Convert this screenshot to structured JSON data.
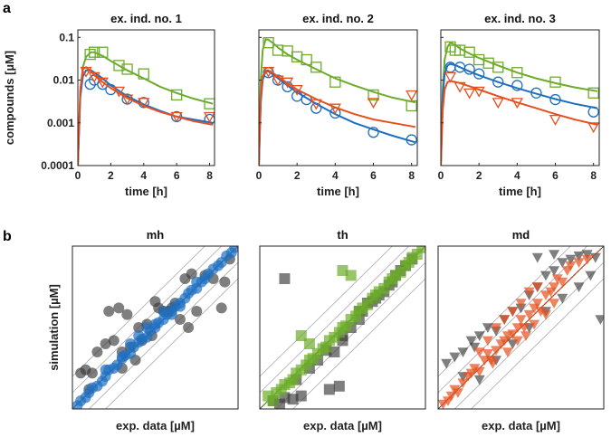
{
  "panel_labels": {
    "a": "a",
    "b": "b"
  },
  "colors": {
    "blue": "#1f6fc0",
    "orange": "#e6501e",
    "green": "#6cac2a",
    "gray": "#3a3a3a"
  },
  "chart_data": [
    {
      "id": "a1",
      "type": "line",
      "title": "ex. ind. no. 1",
      "xlabel": "time [h]",
      "ylabel": "compounds [µM]",
      "xlim": [
        0,
        8.3
      ],
      "ylim": [
        0.0001,
        0.15
      ],
      "yscale": "log",
      "xticks": [
        0,
        2,
        4,
        6,
        8
      ],
      "yticks": [
        0.0001,
        0.001,
        0.01,
        0.1
      ],
      "ytick_labels": [
        "0.0001",
        "0.001",
        "0.01",
        "0.1"
      ],
      "series": [
        {
          "name": "green",
          "color": "green",
          "curve_x": [
            0,
            0.15,
            0.3,
            0.5,
            0.8,
            1,
            1.5,
            2,
            3,
            4,
            5,
            6,
            7,
            8.2
          ],
          "curve_y": [
            0.0001,
            0.005,
            0.02,
            0.035,
            0.045,
            0.045,
            0.037,
            0.028,
            0.017,
            0.011,
            0.007,
            0.005,
            0.0037,
            0.0028
          ],
          "marker": "square",
          "points_x": [
            0.75,
            1.0,
            1.5,
            2.5,
            3.0,
            4.0,
            6.0,
            8.0
          ],
          "points_y": [
            0.04,
            0.045,
            0.045,
            0.022,
            0.018,
            0.014,
            0.0045,
            0.0028
          ]
        },
        {
          "name": "blue",
          "color": "blue",
          "curve_x": [
            0,
            0.15,
            0.3,
            0.5,
            0.8,
            1,
            1.5,
            2,
            3,
            4,
            5,
            6,
            7,
            8.2
          ],
          "curve_y": [
            0.0001,
            0.004,
            0.012,
            0.017,
            0.017,
            0.015,
            0.011,
            0.0075,
            0.0042,
            0.0027,
            0.0019,
            0.0014,
            0.0012,
            0.001
          ],
          "marker": "circle",
          "points_x": [
            0.75,
            1.0,
            1.5,
            2.0,
            3.0,
            4.0,
            6.0,
            8.0
          ],
          "points_y": [
            0.008,
            0.01,
            0.008,
            0.006,
            0.0036,
            0.003,
            0.0014,
            0.0012
          ]
        },
        {
          "name": "orange",
          "color": "orange",
          "curve_x": [
            0,
            0.15,
            0.3,
            0.5,
            0.8,
            1,
            1.5,
            2,
            3,
            4,
            5,
            6,
            7,
            8.2
          ],
          "curve_y": [
            0.0001,
            0.006,
            0.018,
            0.02,
            0.016,
            0.013,
            0.009,
            0.0065,
            0.0038,
            0.0025,
            0.0018,
            0.0014,
            0.0011,
            0.0009
          ],
          "marker": "triangle-down",
          "points_x": [
            0.5,
            1.0,
            1.5,
            2.5,
            3.0,
            4.0,
            6.0,
            8.0
          ],
          "points_y": [
            0.016,
            0.012,
            0.009,
            0.0055,
            0.0036,
            0.003,
            0.0014,
            0.0014
          ]
        }
      ]
    },
    {
      "id": "a2",
      "type": "line",
      "title": "ex. ind. no. 2",
      "xlabel": "time [h]",
      "ylabel": "",
      "xlim": [
        0,
        8.3
      ],
      "ylim": [
        0.0001,
        0.15
      ],
      "yscale": "log",
      "xticks": [
        0,
        2,
        4,
        6,
        8
      ],
      "yticks": [
        0.0001,
        0.001,
        0.01,
        0.1
      ],
      "series": [
        {
          "name": "green",
          "color": "green",
          "curve_x": [
            0,
            0.1,
            0.2,
            0.35,
            0.5,
            0.8,
            1,
            1.5,
            2,
            3,
            4,
            5,
            6,
            7,
            8.2
          ],
          "curve_y": [
            0.0001,
            0.01,
            0.05,
            0.09,
            0.088,
            0.07,
            0.058,
            0.04,
            0.03,
            0.018,
            0.011,
            0.0075,
            0.0053,
            0.0039,
            0.003
          ],
          "marker": "square",
          "points_x": [
            0.5,
            1.0,
            1.5,
            2.0,
            2.5,
            3.0,
            4.0,
            6.0,
            8.0
          ],
          "points_y": [
            0.075,
            0.05,
            0.048,
            0.035,
            0.03,
            0.02,
            0.009,
            0.0045,
            0.0025
          ]
        },
        {
          "name": "blue",
          "color": "blue",
          "curve_x": [
            0,
            0.1,
            0.2,
            0.35,
            0.5,
            0.8,
            1,
            1.5,
            2,
            3,
            4,
            5,
            6,
            7,
            8.2
          ],
          "curve_y": [
            0.0001,
            0.003,
            0.01,
            0.016,
            0.016,
            0.013,
            0.011,
            0.0075,
            0.0052,
            0.0028,
            0.0016,
            0.001,
            0.0007,
            0.0005,
            0.00035
          ],
          "marker": "circle",
          "points_x": [
            0.5,
            1.0,
            1.5,
            2.0,
            2.5,
            3.0,
            4.0,
            6.0,
            8.0
          ],
          "points_y": [
            0.015,
            0.01,
            0.007,
            0.0042,
            0.0035,
            0.0022,
            0.0017,
            0.0006,
            0.0004
          ]
        },
        {
          "name": "orange",
          "color": "orange",
          "curve_x": [
            0,
            0.1,
            0.2,
            0.35,
            0.5,
            0.8,
            1,
            1.5,
            2,
            3,
            4,
            5,
            6,
            7,
            8.2
          ],
          "curve_y": [
            0.0001,
            0.004,
            0.012,
            0.017,
            0.017,
            0.014,
            0.012,
            0.0085,
            0.006,
            0.0036,
            0.0023,
            0.0016,
            0.0012,
            0.001,
            0.0008
          ],
          "marker": "triangle-down",
          "points_x": [
            0.5,
            1.0,
            1.5,
            2.0,
            3.0,
            4.0,
            6.0,
            8.0
          ],
          "points_y": [
            0.016,
            0.01,
            0.009,
            0.006,
            0.0028,
            0.0022,
            0.003,
            0.0045
          ]
        }
      ]
    },
    {
      "id": "a3",
      "type": "line",
      "title": "ex. ind. no. 3",
      "xlabel": "time [h]",
      "ylabel": "",
      "xlim": [
        0,
        8.3
      ],
      "ylim": [
        0.0001,
        0.15
      ],
      "yscale": "log",
      "xticks": [
        0,
        2,
        4,
        6,
        8
      ],
      "yticks": [
        0.0001,
        0.001,
        0.01,
        0.1
      ],
      "series": [
        {
          "name": "green",
          "color": "green",
          "curve_x": [
            0,
            0.1,
            0.2,
            0.35,
            0.5,
            0.8,
            1,
            1.5,
            2,
            3,
            4,
            5,
            6,
            7,
            8.2
          ],
          "curve_y": [
            0.0001,
            0.006,
            0.03,
            0.06,
            0.075,
            0.065,
            0.055,
            0.042,
            0.033,
            0.022,
            0.015,
            0.011,
            0.0085,
            0.0068,
            0.0055
          ],
          "marker": "square",
          "points_x": [
            0.5,
            0.75,
            1.0,
            1.5,
            2.0,
            2.5,
            3.0,
            4.0,
            6.0,
            8.0
          ],
          "points_y": [
            0.06,
            0.05,
            0.05,
            0.045,
            0.03,
            0.025,
            0.02,
            0.015,
            0.009,
            0.005
          ]
        },
        {
          "name": "blue",
          "color": "blue",
          "curve_x": [
            0,
            0.1,
            0.2,
            0.35,
            0.5,
            0.8,
            1,
            1.5,
            2,
            3,
            4,
            5,
            6,
            7,
            8.2
          ],
          "curve_y": [
            0.0001,
            0.004,
            0.014,
            0.022,
            0.024,
            0.022,
            0.02,
            0.016,
            0.013,
            0.009,
            0.0065,
            0.0048,
            0.0036,
            0.0028,
            0.0022
          ],
          "marker": "circle",
          "points_x": [
            0.5,
            1.0,
            1.5,
            2.0,
            3.0,
            4.0,
            5.0,
            6.0,
            8.0
          ],
          "points_y": [
            0.02,
            0.02,
            0.018,
            0.014,
            0.009,
            0.0075,
            0.005,
            0.0035,
            0.0018
          ]
        },
        {
          "name": "orange",
          "color": "orange",
          "curve_x": [
            0,
            0.1,
            0.2,
            0.35,
            0.5,
            0.8,
            1,
            1.5,
            2,
            3,
            4,
            5,
            6,
            7,
            8.2
          ],
          "curve_y": [
            0.0001,
            0.002,
            0.006,
            0.009,
            0.0095,
            0.009,
            0.0085,
            0.0072,
            0.006,
            0.0042,
            0.003,
            0.0022,
            0.0016,
            0.0012,
            0.0009
          ],
          "marker": "triangle-down",
          "points_x": [
            0.5,
            1.0,
            1.5,
            2.0,
            3.0,
            4.0,
            6.0,
            8.0
          ],
          "points_y": [
            0.012,
            0.007,
            0.005,
            0.0055,
            0.003,
            0.003,
            0.0012,
            0.0008
          ]
        }
      ]
    },
    {
      "id": "b1",
      "type": "scatter",
      "title": "mh",
      "xlabel": "exp. data [µM]",
      "ylabel": "simulation [µM]",
      "xlim": [
        0,
        1
      ],
      "ylim": [
        0,
        1
      ],
      "diagonal_bands": [
        -0.2,
        -0.1,
        0,
        0.1,
        0.2
      ],
      "marker": "circle",
      "color": "blue",
      "fit_color": "blue",
      "points_x": [
        0.03,
        0.05,
        0.08,
        0.1,
        0.12,
        0.15,
        0.18,
        0.2,
        0.22,
        0.25,
        0.27,
        0.3,
        0.32,
        0.35,
        0.37,
        0.4,
        0.42,
        0.45,
        0.47,
        0.5,
        0.52,
        0.55,
        0.57,
        0.6,
        0.62,
        0.65,
        0.68,
        0.7,
        0.72,
        0.75,
        0.78,
        0.8,
        0.82,
        0.85,
        0.88,
        0.9,
        0.93,
        0.96,
        0.98,
        0.2,
        0.3,
        0.4,
        0.5,
        0.6,
        0.35,
        0.45,
        0.55,
        0.65,
        0.75
      ],
      "points_y": [
        0.02,
        0.05,
        0.07,
        0.1,
        0.13,
        0.14,
        0.17,
        0.2,
        0.24,
        0.25,
        0.27,
        0.31,
        0.33,
        0.34,
        0.38,
        0.41,
        0.43,
        0.44,
        0.48,
        0.5,
        0.53,
        0.55,
        0.58,
        0.6,
        0.63,
        0.65,
        0.68,
        0.71,
        0.73,
        0.74,
        0.78,
        0.8,
        0.83,
        0.86,
        0.88,
        0.9,
        0.94,
        0.96,
        0.99,
        0.24,
        0.32,
        0.45,
        0.52,
        0.58,
        0.4,
        0.5,
        0.6,
        0.63,
        0.78
      ],
      "points2_x": [
        0.05,
        0.08,
        0.12,
        0.1,
        0.15,
        0.2,
        0.25,
        0.3,
        0.35,
        0.4,
        0.22,
        0.28,
        0.33,
        0.45,
        0.5,
        0.55,
        0.6,
        0.65,
        0.7,
        0.3,
        0.38,
        0.42,
        0.48,
        0.52,
        0.58,
        0.62,
        0.68,
        0.72,
        0.8,
        0.85,
        0.92,
        0.95,
        0.75,
        0.9
      ],
      "points2_y": [
        0.22,
        0.24,
        0.22,
        0.12,
        0.35,
        0.4,
        0.42,
        0.35,
        0.38,
        0.5,
        0.6,
        0.62,
        0.58,
        0.52,
        0.66,
        0.6,
        0.62,
        0.55,
        0.5,
        0.25,
        0.3,
        0.42,
        0.45,
        0.62,
        0.6,
        0.65,
        0.8,
        0.83,
        0.82,
        0.8,
        0.78,
        0.92,
        0.6,
        0.62
      ]
    },
    {
      "id": "b2",
      "type": "scatter",
      "title": "th",
      "xlabel": "exp. data [µM]",
      "ylabel": "",
      "xlim": [
        0,
        1
      ],
      "ylim": [
        0,
        1
      ],
      "diagonal_bands": [
        -0.2,
        -0.1,
        0,
        0.1,
        0.2
      ],
      "marker": "square",
      "color": "green",
      "fit_color": "green",
      "points_x": [
        0.05,
        0.08,
        0.1,
        0.13,
        0.15,
        0.18,
        0.2,
        0.22,
        0.25,
        0.28,
        0.3,
        0.32,
        0.35,
        0.38,
        0.4,
        0.42,
        0.45,
        0.48,
        0.5,
        0.52,
        0.55,
        0.58,
        0.6,
        0.62,
        0.65,
        0.68,
        0.7,
        0.72,
        0.75,
        0.78,
        0.8,
        0.82,
        0.85,
        0.88,
        0.9,
        0.92,
        0.95,
        0.98,
        0.5,
        0.55,
        0.25,
        0.3
      ],
      "points_y": [
        0.08,
        0.05,
        0.1,
        0.12,
        0.15,
        0.16,
        0.18,
        0.22,
        0.24,
        0.27,
        0.3,
        0.31,
        0.34,
        0.37,
        0.38,
        0.42,
        0.44,
        0.47,
        0.5,
        0.51,
        0.55,
        0.57,
        0.6,
        0.62,
        0.64,
        0.68,
        0.7,
        0.72,
        0.74,
        0.78,
        0.8,
        0.82,
        0.84,
        0.88,
        0.9,
        0.93,
        0.95,
        0.99,
        0.85,
        0.82,
        0.45,
        0.4
      ],
      "points2_x": [
        0.08,
        0.12,
        0.15,
        0.2,
        0.25,
        0.22,
        0.35,
        0.4,
        0.45,
        0.5,
        0.55,
        0.6,
        0.42,
        0.48,
        0.62,
        0.68,
        0.72,
        0.78,
        0.82,
        0.88,
        0.92,
        0.3,
        0.5,
        0.6,
        0.7,
        0.8,
        0.65,
        0.75,
        0.85,
        0.15
      ],
      "points2_y": [
        0.05,
        0.03,
        0.07,
        0.06,
        0.08,
        0.18,
        0.3,
        0.36,
        0.35,
        0.45,
        0.5,
        0.55,
        0.12,
        0.14,
        0.6,
        0.66,
        0.7,
        0.76,
        0.82,
        0.88,
        0.92,
        0.25,
        0.42,
        0.6,
        0.68,
        0.78,
        0.65,
        0.72,
        0.85,
        0.8
      ]
    },
    {
      "id": "b3",
      "type": "scatter",
      "title": "md",
      "xlabel": "exp. data [µM]",
      "ylabel": "",
      "xlim": [
        0,
        1
      ],
      "ylim": [
        0,
        1
      ],
      "diagonal_bands": [
        -0.2,
        -0.1,
        0,
        0.1,
        0.2
      ],
      "marker": "triangle-down",
      "color": "orange",
      "fit_color": "orange",
      "points_x": [
        0.03,
        0.06,
        0.08,
        0.1,
        0.12,
        0.15,
        0.18,
        0.2,
        0.22,
        0.25,
        0.28,
        0.3,
        0.32,
        0.35,
        0.38,
        0.4,
        0.42,
        0.45,
        0.48,
        0.5,
        0.52,
        0.55,
        0.58,
        0.6,
        0.62,
        0.65,
        0.68,
        0.7,
        0.72,
        0.75,
        0.78,
        0.8,
        0.85,
        0.9,
        0.3,
        0.35,
        0.4,
        0.45,
        0.5,
        0.55,
        0.6,
        0.25,
        0.33,
        0.42,
        0.48,
        0.53,
        0.58,
        0.65,
        0.7
      ],
      "points_y": [
        0.03,
        0.05,
        0.08,
        0.12,
        0.1,
        0.16,
        0.2,
        0.22,
        0.25,
        0.23,
        0.3,
        0.34,
        0.3,
        0.36,
        0.4,
        0.42,
        0.45,
        0.46,
        0.5,
        0.55,
        0.5,
        0.58,
        0.62,
        0.65,
        0.6,
        0.7,
        0.72,
        0.75,
        0.8,
        0.78,
        0.85,
        0.88,
        0.9,
        0.92,
        0.42,
        0.5,
        0.55,
        0.6,
        0.65,
        0.72,
        0.75,
        0.35,
        0.28,
        0.35,
        0.42,
        0.45,
        0.52,
        0.58,
        0.65
      ],
      "points2_x": [
        0.05,
        0.1,
        0.15,
        0.2,
        0.22,
        0.25,
        0.3,
        0.35,
        0.4,
        0.45,
        0.5,
        0.55,
        0.6,
        0.65,
        0.7,
        0.75,
        0.8,
        0.85,
        0.9,
        0.95,
        0.98,
        0.15,
        0.25,
        0.35,
        0.45,
        0.55,
        0.65,
        0.75,
        0.85,
        0.92,
        0.6,
        0.7
      ],
      "points2_y": [
        0.28,
        0.32,
        0.35,
        0.42,
        0.38,
        0.45,
        0.5,
        0.48,
        0.55,
        0.6,
        0.62,
        0.7,
        0.75,
        0.82,
        0.85,
        0.9,
        0.92,
        0.94,
        0.95,
        0.93,
        0.55,
        0.2,
        0.18,
        0.3,
        0.4,
        0.5,
        0.6,
        0.68,
        0.75,
        0.82,
        0.93,
        0.95
      ]
    }
  ]
}
